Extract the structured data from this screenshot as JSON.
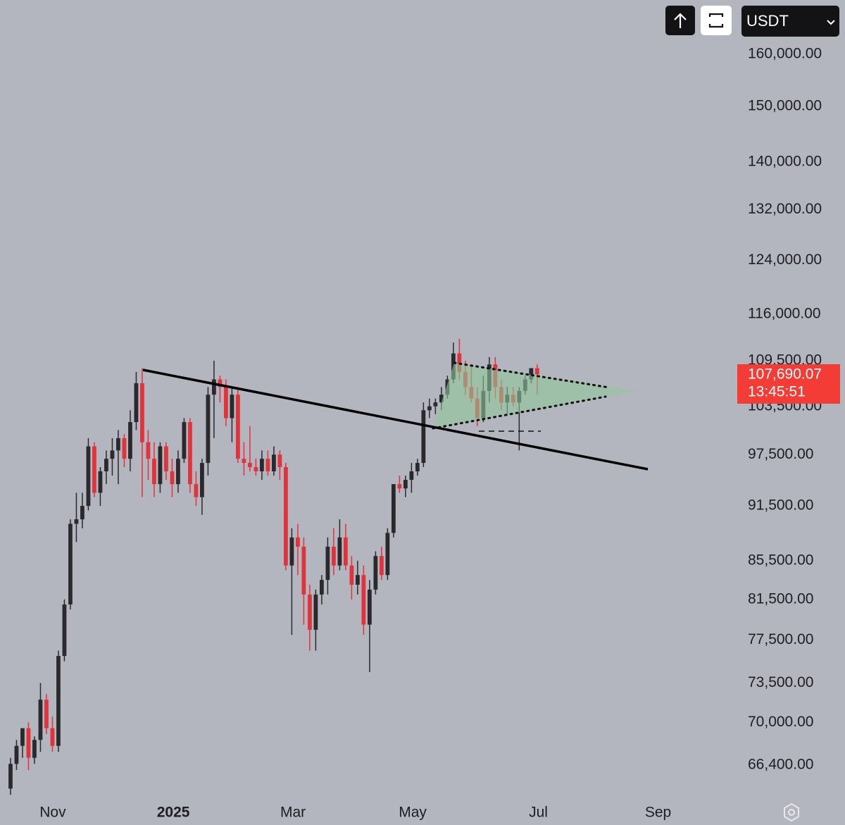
{
  "chart_data": {
    "type": "candlestick",
    "log": true,
    "up_color": "#2a2a2e",
    "down_color": "#e2323a",
    "xlim": [
      -1.76,
      121.2
    ],
    "xticks": [
      {
        "value": 7.06,
        "label": "Nov"
      },
      {
        "value": 27.2,
        "label": "2025"
      },
      {
        "value": 47.2,
        "label": "Mar"
      },
      {
        "value": 67.2,
        "label": "May"
      },
      {
        "value": 88.2,
        "label": "Jul"
      },
      {
        "value": 108.2,
        "label": "Sep"
      }
    ],
    "ylim": [
      63900,
      171100
    ],
    "yticks": [
      {
        "value": 160000,
        "label": "160,000.00"
      },
      {
        "value": 150000,
        "label": "150,000.00"
      },
      {
        "value": 140000,
        "label": "140,000.00"
      },
      {
        "value": 132000,
        "label": "132,000.00"
      },
      {
        "value": 124000,
        "label": "124,000.00"
      },
      {
        "value": 116000,
        "label": "116,000.00"
      },
      {
        "value": 109500,
        "label": "109,500.00"
      },
      {
        "value": 103500,
        "label": "103,500.00"
      },
      {
        "value": 97500,
        "label": "97,500.00"
      },
      {
        "value": 91500,
        "label": "91,500.00"
      },
      {
        "value": 85500,
        "label": "85,500.00"
      },
      {
        "value": 81500,
        "label": "81,500.00"
      },
      {
        "value": 77500,
        "label": "77,500.00"
      },
      {
        "value": 73500,
        "label": "73,500.00"
      },
      {
        "value": 70000,
        "label": "70,000.00"
      },
      {
        "value": 66400,
        "label": "66,400.00"
      }
    ],
    "open": [
      64500,
      66500,
      68000,
      69500,
      67000,
      68500,
      72000,
      69500,
      68000,
      76000,
      81000,
      89500,
      90000,
      91500,
      98500,
      93000,
      95500,
      97000,
      98000,
      99500,
      97000,
      101500,
      106500,
      99000,
      97000,
      94000,
      98500,
      95500,
      94000,
      97000,
      101500,
      94000,
      92500,
      96500,
      105000,
      107000,
      106000,
      102000,
      105000,
      97000,
      96500,
      96000,
      95500,
      97000,
      95500,
      97500,
      96000,
      85000,
      88000,
      87000,
      82000,
      78500,
      82000,
      83500,
      87000,
      85000,
      88000,
      85000,
      83000,
      84000,
      79000,
      82500,
      86000,
      84000,
      88500,
      94000,
      93500,
      94500,
      95500,
      96500,
      103000,
      103500,
      104000,
      105000,
      107000,
      110500,
      108000,
      106000,
      104500,
      102000,
      105500,
      109000,
      106000,
      104000,
      105000,
      104000,
      105500,
      107000,
      108500
    ],
    "high": [
      67000,
      68500,
      69500,
      70000,
      68800,
      73500,
      72500,
      70500,
      76500,
      81500,
      90000,
      93000,
      93000,
      99500,
      99000,
      96000,
      98000,
      99500,
      100500,
      100000,
      103000,
      108000,
      108500,
      100500,
      99000,
      99000,
      99000,
      97000,
      98000,
      102000,
      102000,
      95500,
      97000,
      106000,
      109500,
      107500,
      107000,
      106000,
      106000,
      99000,
      101000,
      97000,
      98000,
      98000,
      98500,
      98000,
      96500,
      89000,
      89500,
      88000,
      83000,
      82500,
      84000,
      88000,
      89000,
      90000,
      89500,
      86000,
      85500,
      85000,
      83500,
      86500,
      87000,
      89000,
      94000,
      95000,
      95000,
      96500,
      97000,
      104000,
      104500,
      104500,
      106000,
      107500,
      112000,
      112500,
      109500,
      109000,
      106000,
      107500,
      110000,
      110000,
      107000,
      106000,
      106000,
      106000,
      107500,
      108500,
      109000
    ],
    "low": [
      64000,
      66000,
      67000,
      66000,
      66500,
      67500,
      69000,
      67500,
      67500,
      75500,
      80500,
      87500,
      89000,
      91000,
      92500,
      91500,
      94000,
      95000,
      94000,
      96000,
      95500,
      100500,
      92500,
      94500,
      92500,
      93000,
      94500,
      92500,
      93000,
      96500,
      93000,
      91500,
      90500,
      95000,
      99500,
      104000,
      101000,
      99000,
      96500,
      95000,
      95500,
      95000,
      94500,
      95000,
      95000,
      94500,
      84500,
      78000,
      84000,
      79000,
      76500,
      76500,
      81000,
      82000,
      84000,
      84500,
      84500,
      81500,
      82000,
      78000,
      74500,
      82000,
      83500,
      83500,
      88000,
      93000,
      92500,
      93000,
      95000,
      96000,
      102000,
      102500,
      103000,
      104500,
      106500,
      107000,
      105000,
      104000,
      101000,
      101500,
      104000,
      104500,
      103000,
      102500,
      103500,
      98000,
      105000,
      106500,
      105000
    ],
    "close": [
      66500,
      68000,
      69500,
      67000,
      68500,
      72000,
      69500,
      68000,
      76000,
      81000,
      89500,
      90000,
      91500,
      98500,
      93000,
      95500,
      97000,
      98000,
      99500,
      97000,
      101500,
      106500,
      99000,
      97000,
      94000,
      98500,
      95500,
      94000,
      97000,
      101500,
      94000,
      92500,
      96500,
      105000,
      107000,
      106000,
      102000,
      105000,
      97000,
      96500,
      96000,
      95500,
      97000,
      95500,
      97500,
      96000,
      85000,
      88000,
      87000,
      82000,
      78500,
      82000,
      83500,
      87000,
      85000,
      88000,
      85000,
      83000,
      84000,
      79000,
      82500,
      86000,
      84000,
      88500,
      94000,
      93500,
      94500,
      95500,
      96500,
      103000,
      103500,
      104000,
      105000,
      107000,
      110500,
      108000,
      106000,
      104500,
      102000,
      105500,
      109000,
      106000,
      104000,
      105000,
      104000,
      105500,
      107000,
      108500,
      107690.07
    ],
    "current_price": {
      "value": 107690.07,
      "label": "107,690.07"
    },
    "countdown": "13:45:51",
    "currency": "USDT"
  }
}
